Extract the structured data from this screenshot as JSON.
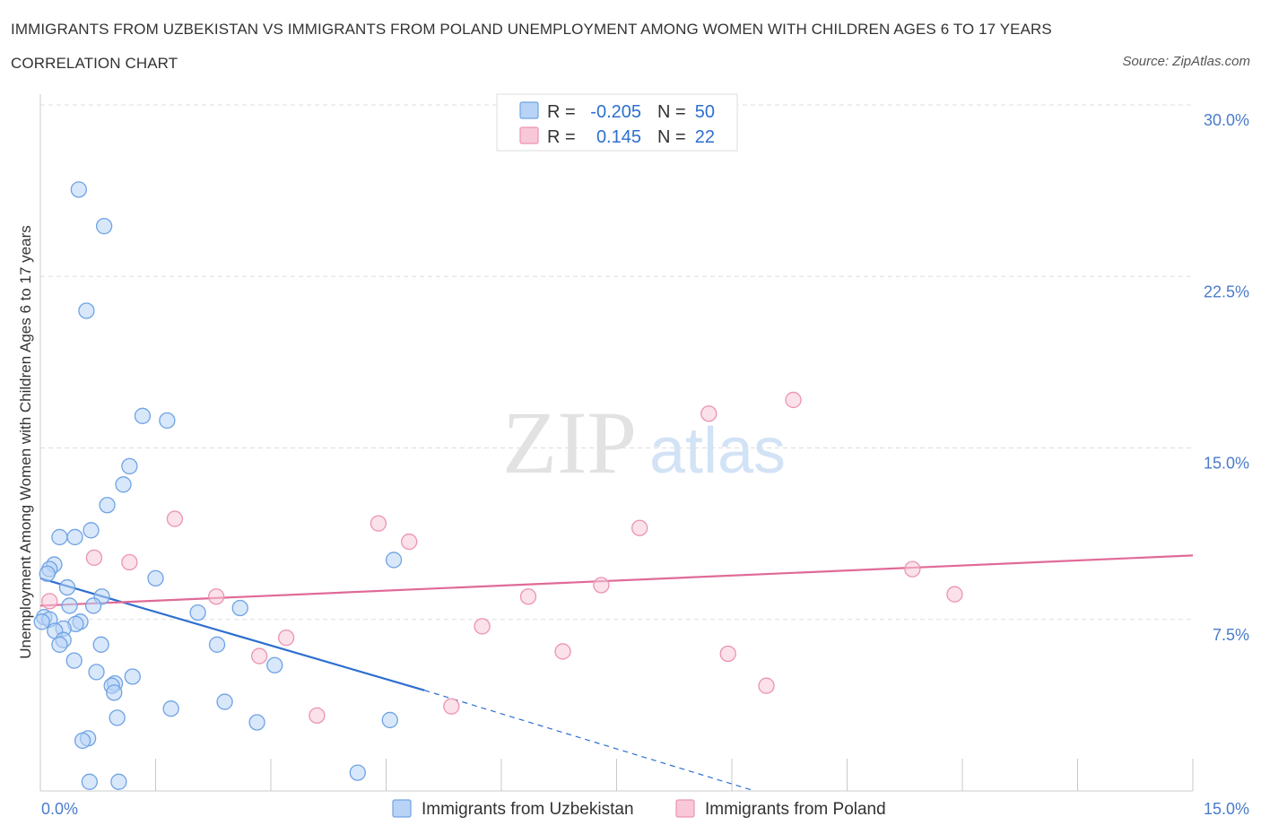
{
  "title": "IMMIGRANTS FROM UZBEKISTAN VS IMMIGRANTS FROM POLAND UNEMPLOYMENT AMONG WOMEN WITH CHILDREN AGES 6 TO 17 YEARS CORRELATION CHART",
  "source": "Source: ZipAtlas.com",
  "watermark": {
    "zip": "ZIP",
    "atlas": "atlas"
  },
  "colors": {
    "uzbekistan_fill": "#b8d3f5",
    "uzbekistan_stroke": "#6fa3e4",
    "uzbekistan_line": "#2d6fcf",
    "poland_fill": "#f8c8d8",
    "poland_stroke": "#ec93b2",
    "poland_line": "#e06a97",
    "tick_label": "#4a7cc9",
    "grid": "#dddddd"
  },
  "stats_legend": {
    "rows": [
      {
        "r_label": "R =",
        "r_value": "-0.205",
        "n_label": "N =",
        "n_value": "50"
      },
      {
        "r_label": "R =",
        "r_value": "0.145",
        "n_label": "N =",
        "n_value": "22"
      }
    ]
  },
  "chart_data": {
    "type": "scatter",
    "xlabel": "",
    "ylabel": "Unemployment Among Women with Children Ages 6 to 17 years",
    "xlim": [
      0,
      15
    ],
    "ylim": [
      0,
      30
    ],
    "x_tick_labels": [
      {
        "value": 0,
        "label": "0.0%"
      },
      {
        "value": 15,
        "label": "15.0%"
      }
    ],
    "y_tick_labels": [
      {
        "value": 7.5,
        "label": "7.5%"
      },
      {
        "value": 15,
        "label": "15.0%"
      },
      {
        "value": 22.5,
        "label": "22.5%"
      },
      {
        "value": 30,
        "label": "30.0%"
      }
    ],
    "grid": true,
    "legend_position": "bottom",
    "series": [
      {
        "name": "Immigrants from Uzbekistan",
        "color": "#6fa3e4",
        "points": [
          [
            0.5,
            26.3
          ],
          [
            0.83,
            24.7
          ],
          [
            0.6,
            21.0
          ],
          [
            1.33,
            16.4
          ],
          [
            1.65,
            16.2
          ],
          [
            1.16,
            14.2
          ],
          [
            1.08,
            13.4
          ],
          [
            0.87,
            12.5
          ],
          [
            0.66,
            11.4
          ],
          [
            0.25,
            11.1
          ],
          [
            0.45,
            11.1
          ],
          [
            0.18,
            9.9
          ],
          [
            0.12,
            9.7
          ],
          [
            0.09,
            9.5
          ],
          [
            1.5,
            9.3
          ],
          [
            4.6,
            10.1
          ],
          [
            0.35,
            8.9
          ],
          [
            0.8,
            8.5
          ],
          [
            0.69,
            8.1
          ],
          [
            0.38,
            8.1
          ],
          [
            2.05,
            7.8
          ],
          [
            2.6,
            8.0
          ],
          [
            0.05,
            7.6
          ],
          [
            0.12,
            7.5
          ],
          [
            0.02,
            7.4
          ],
          [
            0.52,
            7.4
          ],
          [
            0.46,
            7.3
          ],
          [
            0.3,
            7.1
          ],
          [
            0.19,
            7.0
          ],
          [
            0.3,
            6.6
          ],
          [
            0.25,
            6.4
          ],
          [
            0.79,
            6.4
          ],
          [
            2.3,
            6.4
          ],
          [
            0.44,
            5.7
          ],
          [
            3.05,
            5.5
          ],
          [
            0.73,
            5.2
          ],
          [
            1.2,
            5.0
          ],
          [
            0.97,
            4.7
          ],
          [
            0.93,
            4.6
          ],
          [
            0.96,
            4.3
          ],
          [
            2.4,
            3.9
          ],
          [
            1.7,
            3.6
          ],
          [
            1.0,
            3.2
          ],
          [
            2.82,
            3.0
          ],
          [
            4.55,
            3.1
          ],
          [
            0.62,
            2.3
          ],
          [
            0.55,
            2.2
          ],
          [
            4.13,
            0.8
          ],
          [
            0.64,
            0.4
          ],
          [
            1.02,
            0.4
          ]
        ],
        "trend": {
          "x": [
            0,
            5.0
          ],
          "y": [
            9.3,
            4.4
          ]
        },
        "trend_extension": {
          "x": [
            5.0,
            9.3
          ],
          "y": [
            4.4,
            0.0
          ]
        }
      },
      {
        "name": "Immigrants from Poland",
        "color": "#ec93b2",
        "points": [
          [
            0.12,
            8.3
          ],
          [
            1.16,
            10.0
          ],
          [
            0.7,
            10.2
          ],
          [
            1.75,
            11.9
          ],
          [
            2.29,
            8.5
          ],
          [
            3.2,
            6.7
          ],
          [
            2.85,
            5.9
          ],
          [
            3.6,
            3.3
          ],
          [
            4.4,
            11.7
          ],
          [
            4.8,
            10.9
          ],
          [
            5.35,
            3.7
          ],
          [
            5.75,
            7.2
          ],
          [
            6.35,
            8.5
          ],
          [
            6.8,
            6.1
          ],
          [
            7.3,
            9.0
          ],
          [
            7.8,
            11.5
          ],
          [
            8.7,
            16.5
          ],
          [
            8.95,
            6.0
          ],
          [
            9.45,
            4.6
          ],
          [
            9.8,
            17.1
          ],
          [
            11.35,
            9.7
          ],
          [
            11.9,
            8.6
          ]
        ],
        "trend": {
          "x": [
            0,
            15.0
          ],
          "y": [
            8.1,
            10.3
          ]
        }
      }
    ]
  }
}
